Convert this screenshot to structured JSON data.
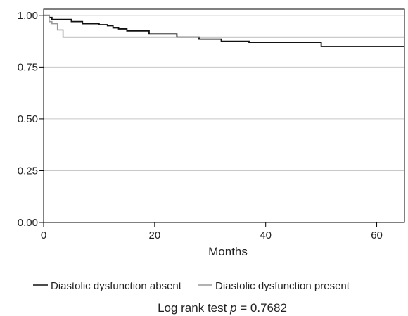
{
  "chart_data": {
    "type": "line",
    "step": true,
    "xlabel": "Months",
    "ylabel": "",
    "xlim": [
      0,
      65
    ],
    "ylim": [
      0,
      1.03
    ],
    "xticks": [
      0,
      20,
      40,
      60
    ],
    "yticks": [
      0,
      0.25,
      0.5,
      0.75,
      1.0
    ],
    "ytick_labels": [
      "0.00",
      "0.25",
      "0.50",
      "0.75",
      "1.00"
    ],
    "grid": "horizontal",
    "legend_position": "bottom",
    "series": [
      {
        "name": "Diastolic dysfunction absent",
        "color": "#111111",
        "x": [
          0,
          1,
          1.5,
          3,
          5,
          7,
          10,
          11.5,
          12.5,
          13.5,
          15,
          19,
          24,
          28,
          32,
          37,
          50,
          65
        ],
        "y": [
          1.0,
          0.99,
          0.98,
          0.98,
          0.97,
          0.96,
          0.955,
          0.95,
          0.94,
          0.935,
          0.925,
          0.91,
          0.895,
          0.885,
          0.875,
          0.87,
          0.85,
          0.85
        ]
      },
      {
        "name": "Diastolic dysfunction present",
        "color": "#999999",
        "x": [
          0,
          1,
          1.5,
          2.5,
          3.5,
          65
        ],
        "y": [
          1.0,
          0.97,
          0.96,
          0.93,
          0.895,
          0.895
        ]
      }
    ]
  },
  "legend": {
    "absent_label": "Diastolic dysfunction absent",
    "present_label": "Diastolic dysfunction present"
  },
  "footnote": {
    "prefix": "Log rank test ",
    "p_symbol": "p",
    "suffix": " = 0.7682"
  }
}
